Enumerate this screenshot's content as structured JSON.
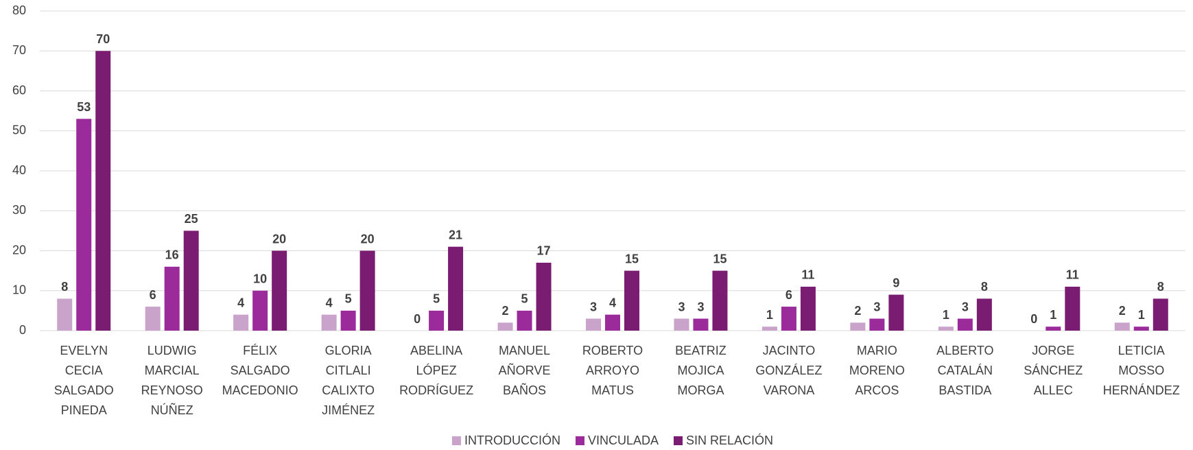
{
  "chart_data": {
    "type": "bar",
    "categories": [
      "EVELYN CECIA SALGADO PINEDA",
      "LUDWIG MARCIAL REYNOSO NÚÑEZ",
      "FÉLIX SALGADO MACEDONIO",
      "GLORIA CITLALI CALIXTO JIMÉNEZ",
      "ABELINA LÓPEZ RODRÍGUEZ",
      "MANUEL AÑORVE BAÑOS",
      "ROBERTO ARROYO MATUS",
      "BEATRIZ MOJICA MORGA",
      "JACINTO GONZÁLEZ VARONA",
      "MARIO MORENO ARCOS",
      "ALBERTO CATALÁN BASTIDA",
      "JORGE SÁNCHEZ ALLEC",
      "LETICIA MOSSO HERNÁNDEZ"
    ],
    "series": [
      {
        "name": "INTRODUCCIÓN",
        "color": "#c9a3c9",
        "values": [
          8,
          6,
          4,
          4,
          0,
          2,
          3,
          3,
          1,
          2,
          1,
          0,
          2
        ]
      },
      {
        "name": "VINCULADA",
        "color": "#9b2a9b",
        "values": [
          53,
          16,
          10,
          5,
          5,
          5,
          4,
          3,
          6,
          3,
          3,
          1,
          1
        ]
      },
      {
        "name": "SIN RELACIÓN",
        "color": "#7a1d72",
        "values": [
          70,
          25,
          20,
          20,
          21,
          17,
          15,
          15,
          11,
          9,
          8,
          11,
          8
        ]
      }
    ],
    "ylim": [
      0,
      80
    ],
    "yticks": [
      0,
      10,
      20,
      30,
      40,
      50,
      60,
      70,
      80
    ],
    "grid": true,
    "legend": "bottom"
  }
}
